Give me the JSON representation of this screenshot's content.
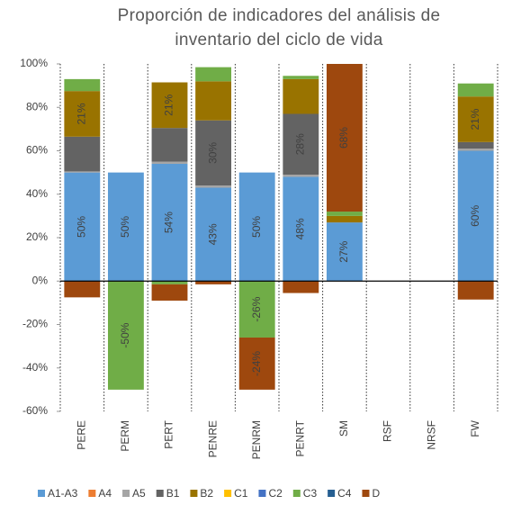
{
  "chart_data": {
    "type": "stacked_bar",
    "title": "Proporción de indicadores del análisis de inventario del ciclo de vida",
    "categories": [
      "PERE",
      "PERM",
      "PERT",
      "PENRE",
      "PENRM",
      "PENRT",
      "SM",
      "RSF",
      "NRSF",
      "FW"
    ],
    "ylim": [
      -60,
      100
    ],
    "yticks": [
      {
        "value": -60,
        "label": "-60%"
      },
      {
        "value": -40,
        "label": "-40%"
      },
      {
        "value": -20,
        "label": "-20%"
      },
      {
        "value": 0,
        "label": "0%"
      },
      {
        "value": 20,
        "label": "20%"
      },
      {
        "value": 40,
        "label": "40%"
      },
      {
        "value": 60,
        "label": "60%"
      },
      {
        "value": 80,
        "label": "80%"
      },
      {
        "value": 100,
        "label": "100%"
      }
    ],
    "grid": false,
    "legend": "bottom",
    "series": [
      {
        "name": "A1-A3",
        "color": "#5b9bd5",
        "values": [
          50,
          50,
          54,
          43,
          50,
          48,
          27,
          0,
          0,
          60
        ],
        "value_labels": [
          "50%",
          "50%",
          "54%",
          "43%",
          "50%",
          "48%",
          "27%",
          null,
          null,
          "60%"
        ]
      },
      {
        "name": "A4",
        "color": "#ed7d31",
        "values": [
          0,
          0,
          0,
          0,
          0,
          0,
          0,
          0,
          0,
          0
        ]
      },
      {
        "name": "A5",
        "color": "#a5a5a5",
        "values": [
          0.5,
          0,
          1,
          1,
          0,
          1,
          0,
          0,
          0,
          1
        ]
      },
      {
        "name": "B1",
        "color": "#636363",
        "values": [
          16,
          0,
          15.5,
          30,
          0,
          28,
          0,
          0,
          0,
          3
        ],
        "value_labels": [
          null,
          null,
          null,
          "30%",
          null,
          "28%",
          null,
          null,
          null,
          null
        ]
      },
      {
        "name": "B2",
        "color": "#997300",
        "values": [
          21,
          0,
          21,
          18,
          0,
          16,
          3,
          0,
          0,
          21
        ],
        "value_labels": [
          "21%",
          null,
          "21%",
          null,
          null,
          null,
          null,
          null,
          null,
          "21%"
        ]
      },
      {
        "name": "C1",
        "color": "#ffc000",
        "values": [
          0,
          0,
          0,
          0,
          0,
          0,
          0,
          0,
          0,
          0
        ]
      },
      {
        "name": "C2",
        "color": "#4472c4",
        "values": [
          0,
          0,
          0,
          0,
          0,
          0,
          0,
          0,
          0,
          0
        ]
      },
      {
        "name": "C3",
        "color": "#70ad47",
        "values": [
          5.5,
          -50,
          -1.5,
          6.5,
          -26,
          1.5,
          2,
          0,
          0,
          6
        ],
        "value_labels": [
          null,
          "-50%",
          null,
          null,
          "-26%",
          null,
          null,
          null,
          null,
          null
        ]
      },
      {
        "name": "C4",
        "color": "#255e91",
        "values": [
          0,
          0,
          0,
          0,
          0,
          0,
          0,
          0,
          0,
          0
        ]
      },
      {
        "name": "D",
        "color": "#9e480e",
        "values": [
          -7.5,
          0,
          -7.5,
          -1.5,
          -24,
          -5.5,
          68,
          0,
          0,
          -8.5
        ],
        "value_labels": [
          null,
          null,
          null,
          null,
          "-24%",
          null,
          "68%",
          null,
          null,
          null
        ]
      }
    ]
  }
}
